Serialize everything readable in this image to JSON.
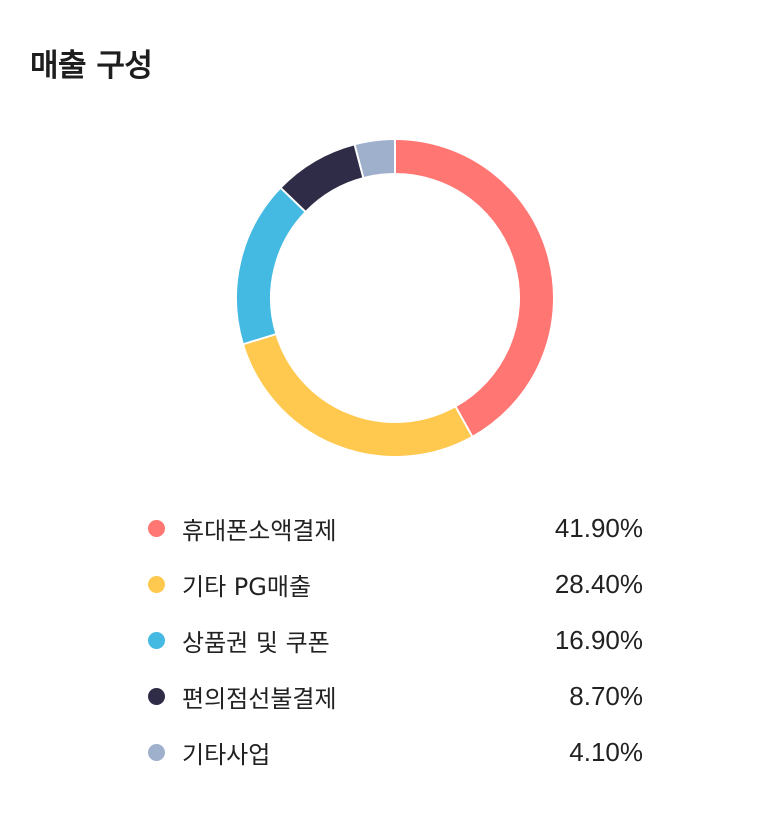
{
  "title": "매출 구성",
  "chart_data": {
    "type": "pie",
    "categories": [
      "휴대폰소액결제",
      "기타 PG매출",
      "상품권 및 쿠폰",
      "편의점선불결제",
      "기타사업"
    ],
    "values": [
      41.9,
      28.4,
      16.9,
      8.7,
      4.1
    ],
    "labels": [
      "41.90%",
      "28.40%",
      "16.90%",
      "8.70%",
      "4.10%"
    ],
    "colors": [
      "#ff7672",
      "#ffc94f",
      "#44b9e2",
      "#2f2c48",
      "#9fb0cc"
    ],
    "legend_position": "bottom",
    "donut": true
  }
}
